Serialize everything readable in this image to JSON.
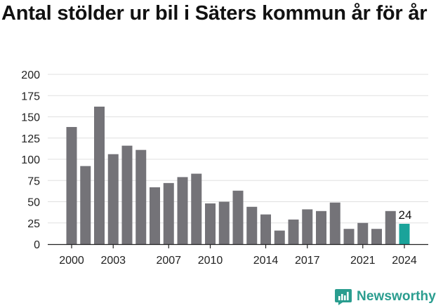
{
  "title": "Antal stölder ur bil i Säters kommun år för år",
  "brand": "Newsworthy",
  "colors": {
    "bar": "#747378",
    "highlight": "#1aa39a",
    "grid": "#e0e0e0",
    "axis": "#222222",
    "brand": "#2a9d8f"
  },
  "chart_data": {
    "type": "bar",
    "title": "Antal stölder ur bil i Säters kommun år för år",
    "xlabel": "",
    "ylabel": "",
    "ylim": [
      0,
      200
    ],
    "yticks": [
      0,
      25,
      50,
      75,
      100,
      125,
      150,
      175,
      200
    ],
    "x_tick_labels": [
      "2000",
      "2003",
      "2007",
      "2010",
      "2014",
      "2017",
      "2021",
      "2024"
    ],
    "categories": [
      "2000",
      "2001",
      "2002",
      "2003",
      "2004",
      "2005",
      "2006",
      "2007",
      "2008",
      "2009",
      "2010",
      "2011",
      "2012",
      "2013",
      "2014",
      "2015",
      "2016",
      "2017",
      "2018",
      "2019",
      "2020",
      "2021",
      "2022",
      "2023",
      "2024"
    ],
    "values": [
      138,
      92,
      162,
      106,
      116,
      111,
      67,
      72,
      79,
      83,
      48,
      50,
      63,
      44,
      35,
      16,
      29,
      41,
      39,
      49,
      18,
      25,
      18,
      39,
      24
    ],
    "highlight": {
      "category": "2024",
      "label": "24"
    },
    "grid": true,
    "legend": "none"
  }
}
